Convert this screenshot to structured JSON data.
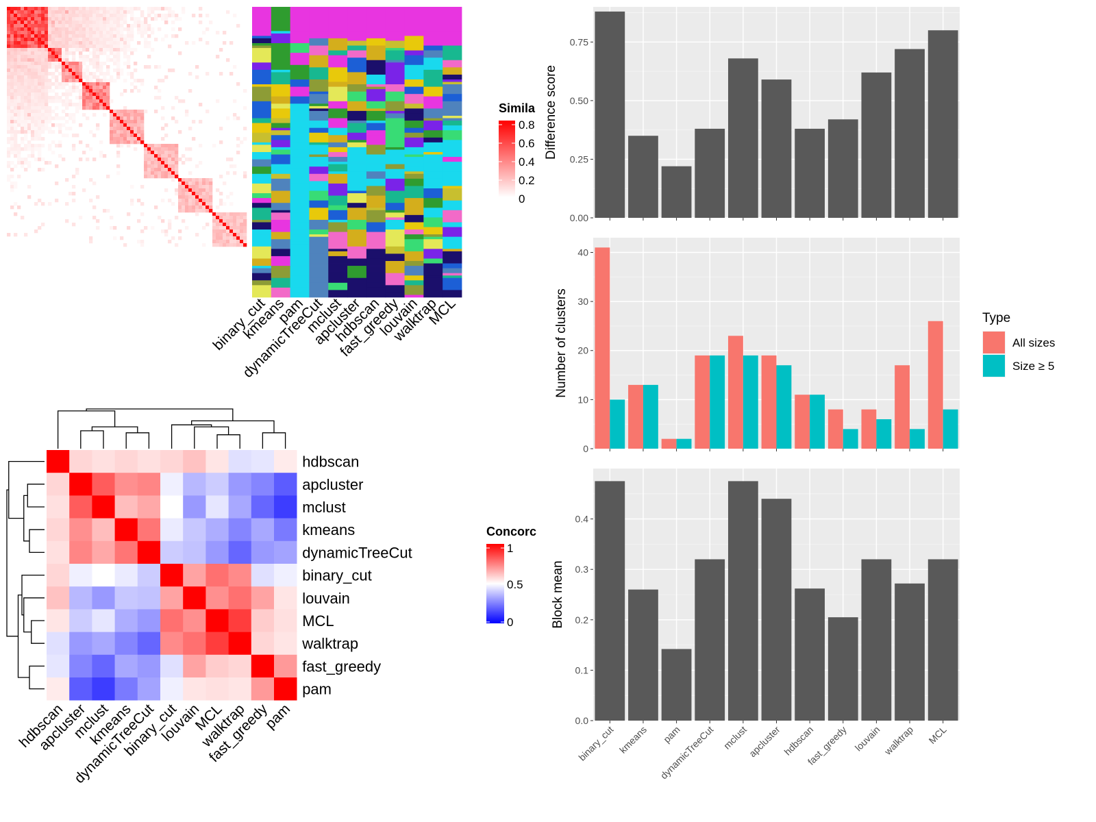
{
  "chart_data": [
    {
      "type": "heatmap",
      "panel": "similarity",
      "legend_title": "Simila",
      "legend_ticks": [
        "0.8",
        "0.6",
        "0.4",
        "0.2",
        "0"
      ],
      "color_low": "#ffffff",
      "color_high": "#ff0000"
    },
    {
      "type": "heatmap",
      "panel": "cluster-assignments",
      "columns": [
        "binary_cut",
        "kmeans",
        "pam",
        "dynamicTreeCut",
        "mclust",
        "apcluster",
        "hdbscan",
        "fast_greedy",
        "louvain",
        "walktrap",
        "MCL"
      ]
    },
    {
      "type": "heatmap",
      "panel": "concordance",
      "labels": [
        "hdbscan",
        "apcluster",
        "mclust",
        "kmeans",
        "dynamicTreeCut",
        "binary_cut",
        "louvain",
        "MCL",
        "walktrap",
        "fast_greedy",
        "pam"
      ],
      "legend_title": "Concorc",
      "legend_ticks": [
        "1",
        "0.5",
        "0"
      ],
      "matrix": [
        [
          1.0,
          0.58,
          0.56,
          0.58,
          0.56,
          0.58,
          0.62,
          0.55,
          0.44,
          0.45,
          0.54
        ],
        [
          0.58,
          1.0,
          0.82,
          0.72,
          0.74,
          0.47,
          0.36,
          0.4,
          0.3,
          0.26,
          0.18
        ],
        [
          0.56,
          0.82,
          1.0,
          0.63,
          0.67,
          0.5,
          0.3,
          0.45,
          0.33,
          0.2,
          0.12
        ],
        [
          0.58,
          0.72,
          0.63,
          1.0,
          0.77,
          0.46,
          0.39,
          0.34,
          0.26,
          0.33,
          0.24
        ],
        [
          0.56,
          0.74,
          0.67,
          0.77,
          1.0,
          0.4,
          0.38,
          0.3,
          0.2,
          0.3,
          0.32
        ],
        [
          0.58,
          0.47,
          0.5,
          0.46,
          0.4,
          1.0,
          0.68,
          0.78,
          0.73,
          0.44,
          0.47
        ],
        [
          0.62,
          0.36,
          0.3,
          0.39,
          0.38,
          0.68,
          1.0,
          0.72,
          0.78,
          0.68,
          0.55
        ],
        [
          0.55,
          0.4,
          0.45,
          0.34,
          0.3,
          0.78,
          0.72,
          1.0,
          0.88,
          0.6,
          0.56
        ],
        [
          0.44,
          0.3,
          0.33,
          0.26,
          0.2,
          0.73,
          0.78,
          0.88,
          1.0,
          0.58,
          0.55
        ],
        [
          0.45,
          0.26,
          0.2,
          0.33,
          0.3,
          0.44,
          0.68,
          0.6,
          0.58,
          1.0,
          0.7
        ],
        [
          0.54,
          0.18,
          0.12,
          0.24,
          0.32,
          0.47,
          0.55,
          0.56,
          0.55,
          0.7,
          1.0
        ]
      ]
    },
    {
      "type": "bar",
      "panel": "difference-score",
      "categories": [
        "binary_cut",
        "kmeans",
        "pam",
        "dynamicTreeCut",
        "mclust",
        "apcluster",
        "hdbscan",
        "fast_greedy",
        "louvain",
        "walktrap",
        "MCL"
      ],
      "values": [
        0.88,
        0.35,
        0.22,
        0.38,
        0.68,
        0.59,
        0.38,
        0.42,
        0.62,
        0.72,
        0.8
      ],
      "ylabel": "Difference score",
      "ylim": [
        0,
        0.9
      ],
      "yticks": [
        "0.00",
        "0.25",
        "0.50",
        "0.75"
      ],
      "fill": "#595959"
    },
    {
      "type": "bar",
      "panel": "number-of-clusters",
      "categories": [
        "binary_cut",
        "kmeans",
        "pam",
        "dynamicTreeCut",
        "mclust",
        "apcluster",
        "hdbscan",
        "fast_greedy",
        "louvain",
        "walktrap",
        "MCL"
      ],
      "series": [
        {
          "name": "All sizes",
          "values": [
            41,
            13,
            2,
            19,
            23,
            19,
            11,
            8,
            8,
            17,
            26
          ],
          "color": "#f8766d"
        },
        {
          "name": "Size ≥ 5",
          "values": [
            10,
            13,
            2,
            19,
            19,
            17,
            11,
            4,
            6,
            4,
            8
          ],
          "color": "#00bfc4"
        }
      ],
      "ylabel": "Number of clusters",
      "ylim": [
        0,
        43
      ],
      "yticks": [
        "0",
        "10",
        "20",
        "30",
        "40"
      ],
      "legend_title": "Type"
    },
    {
      "type": "bar",
      "panel": "block-mean",
      "categories": [
        "binary_cut",
        "kmeans",
        "pam",
        "dynamicTreeCut",
        "mclust",
        "apcluster",
        "hdbscan",
        "fast_greedy",
        "louvain",
        "walktrap",
        "MCL"
      ],
      "values": [
        0.475,
        0.26,
        0.142,
        0.32,
        0.475,
        0.44,
        0.262,
        0.205,
        0.32,
        0.272,
        0.32
      ],
      "ylabel": "Block mean",
      "ylim": [
        0,
        0.5
      ],
      "yticks": [
        "0.0",
        "0.1",
        "0.2",
        "0.3",
        "0.4"
      ],
      "fill": "#595959"
    }
  ]
}
